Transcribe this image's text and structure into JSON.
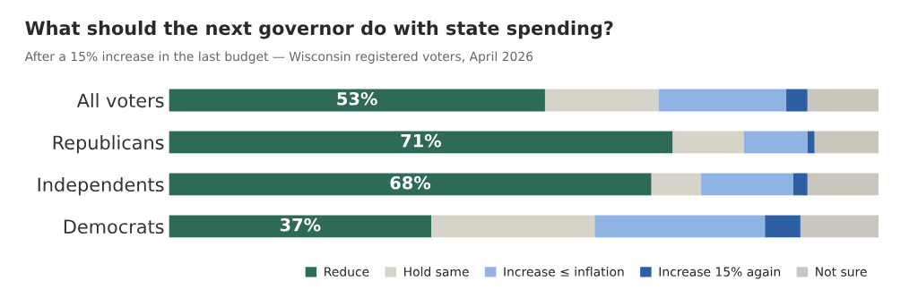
{
  "chart_data": {
    "type": "bar",
    "orientation": "horizontal",
    "stacked": true,
    "title": "What should the next governor do with state spending?",
    "subtitle": "After a 15% increase in the last budget — Wisconsin registered voters, April 2026",
    "categories": [
      "All voters",
      "Republicans",
      "Independents",
      "Democrats"
    ],
    "xlim": [
      0,
      100
    ],
    "tick_labels": "y",
    "grid": false,
    "legend": "bottom right",
    "series": [
      {
        "name": "Reduce",
        "color": "#2e6b55",
        "values": [
          53,
          71,
          68,
          37
        ],
        "value_labels": [
          "53%",
          "71%",
          "68%",
          "37%"
        ]
      },
      {
        "name": "Hold same",
        "color": "#d6d3c8",
        "values": [
          16,
          10,
          7,
          23
        ]
      },
      {
        "name": "Increase ≤ inflation",
        "color": "#8fb4e3",
        "values": [
          18,
          9,
          13,
          24
        ]
      },
      {
        "name": "Increase 15% again",
        "color": "#2e5fa3",
        "values": [
          3,
          1,
          2,
          5
        ]
      },
      {
        "name": "Not sure",
        "color": "#c9c6bd",
        "values": [
          10,
          9,
          10,
          11
        ]
      }
    ]
  }
}
